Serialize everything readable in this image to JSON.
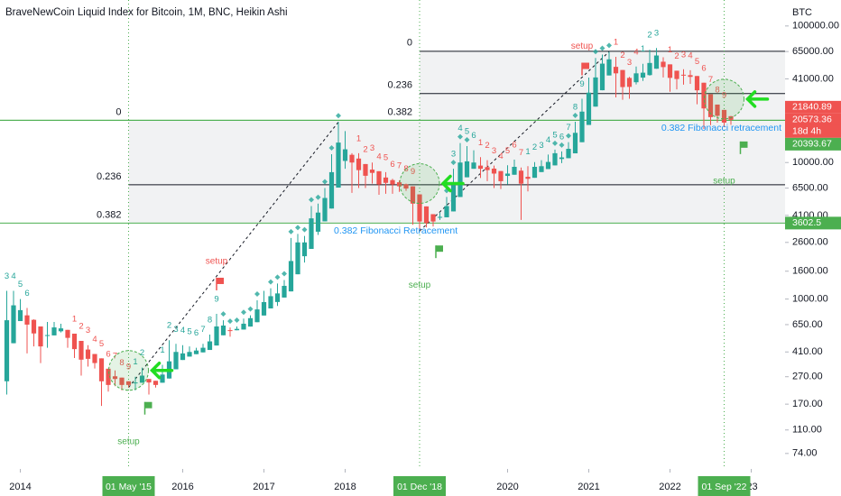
{
  "chart_data": {
    "type": "candlestick",
    "title": "BraveNewCoin Liquid Index for Bitcoin, 1M, BNC, Heikin Ashi",
    "currency": "BTC",
    "log_scale": true,
    "ylim": [
      57,
      155000
    ],
    "yticks": [
      {
        "value": 100000,
        "label": "100000.00"
      },
      {
        "value": 65000,
        "label": "65000.00"
      },
      {
        "value": 41000,
        "label": "41000.00"
      },
      {
        "value": 10000,
        "label": "10000.00"
      },
      {
        "value": 6500,
        "label": "6500.00"
      },
      {
        "value": 4100,
        "label": "4100.00"
      },
      {
        "value": 2600,
        "label": "2600.00"
      },
      {
        "value": 1600,
        "label": "1600.00"
      },
      {
        "value": 1000,
        "label": "1000.00"
      },
      {
        "value": 650,
        "label": "650.00"
      },
      {
        "value": 410,
        "label": "410.00"
      },
      {
        "value": 270,
        "label": "270.00"
      },
      {
        "value": 170,
        "label": "170.00"
      },
      {
        "value": 110,
        "label": "110.00"
      },
      {
        "value": 74,
        "label": "74.00"
      }
    ],
    "xlim": [
      "2013-10",
      "2023-06"
    ],
    "xticks": [
      {
        "value": "2014-01",
        "label": "2014"
      },
      {
        "value": "2016-01",
        "label": "2016"
      },
      {
        "value": "2017-01",
        "label": "2017"
      },
      {
        "value": "2018-01",
        "label": "2018"
      },
      {
        "value": "2020-01",
        "label": "2020"
      },
      {
        "value": "2021-01",
        "label": "2021"
      },
      {
        "value": "2022-01",
        "label": "2022"
      },
      {
        "value": "2023-01",
        "label": "'23"
      }
    ],
    "up_color": "#26a69a",
    "down_color": "#ef5350",
    "candles": {
      "x": [
        "2013-11",
        "2013-12",
        "2014-01",
        "2014-02",
        "2014-03",
        "2014-04",
        "2014-05",
        "2014-06",
        "2014-07",
        "2014-08",
        "2014-09",
        "2014-10",
        "2014-11",
        "2014-12",
        "2015-01",
        "2015-02",
        "2015-03",
        "2015-04",
        "2015-05",
        "2015-06",
        "2015-07",
        "2015-08",
        "2015-09",
        "2015-10",
        "2015-11",
        "2015-12",
        "2016-01",
        "2016-02",
        "2016-03",
        "2016-04",
        "2016-05",
        "2016-06",
        "2016-07",
        "2016-08",
        "2016-09",
        "2016-10",
        "2016-11",
        "2016-12",
        "2017-01",
        "2017-02",
        "2017-03",
        "2017-04",
        "2017-05",
        "2017-06",
        "2017-07",
        "2017-08",
        "2017-09",
        "2017-10",
        "2017-11",
        "2017-12",
        "2018-01",
        "2018-02",
        "2018-03",
        "2018-04",
        "2018-05",
        "2018-06",
        "2018-07",
        "2018-08",
        "2018-09",
        "2018-10",
        "2018-11",
        "2018-12",
        "2019-01",
        "2019-02",
        "2019-03",
        "2019-04",
        "2019-05",
        "2019-06",
        "2019-07",
        "2019-08",
        "2019-09",
        "2019-10",
        "2019-11",
        "2019-12",
        "2020-01",
        "2020-02",
        "2020-03",
        "2020-04",
        "2020-05",
        "2020-06",
        "2020-07",
        "2020-08",
        "2020-09",
        "2020-10",
        "2020-11",
        "2020-12",
        "2021-01",
        "2021-02",
        "2021-03",
        "2021-04",
        "2021-05",
        "2021-06",
        "2021-07",
        "2021-08",
        "2021-09",
        "2021-10",
        "2021-11",
        "2021-12",
        "2022-01",
        "2022-02",
        "2022-03",
        "2022-04",
        "2022-05",
        "2022-06",
        "2022-07",
        "2022-08",
        "2022-09",
        "2022-10"
      ],
      "open": [
        250,
        475,
        690,
        760,
        705,
        630,
        540,
        542,
        581,
        595,
        558,
        494,
        427,
        396,
        368,
        309,
        272,
        266,
        250,
        243,
        244,
        260,
        252,
        244,
        262,
        306,
        358,
        379,
        395,
        407,
        424,
        457,
        543,
        592,
        591,
        598,
        629,
        677,
        758,
        854,
        952,
        1026,
        1138,
        1519,
        2060,
        2330,
        3115,
        3708,
        4604,
        6552,
        10276,
        11388,
        10694,
        9747,
        8873,
        8637,
        7768,
        7434,
        7167,
        6933,
        6692,
        5846,
        4773,
        4186,
        3943,
        3971,
        4385,
        5592,
        7796,
        8998,
        9499,
        9250,
        9025,
        8663,
        7981,
        8140,
        8720,
        7860,
        7730,
        8515,
        8957,
        9528,
        10614,
        10757,
        11678,
        14089,
        18845,
        25672,
        33836,
        43418,
        50209,
        47605,
        41652,
        38726,
        41863,
        43681,
        48640,
        54720,
        52360,
        47030,
        43965,
        43632,
        43016,
        38408,
        31654,
        26577,
        24288,
        21840.89
      ],
      "high": [
        1150,
        1150,
        1000,
        860,
        710,
        630,
        680,
        680,
        660,
        595,
        558,
        494,
        460,
        396,
        368,
        309,
        300,
        266,
        250,
        270,
        315,
        260,
        252,
        330,
        500,
        470,
        460,
        450,
        440,
        470,
        550,
        780,
        700,
        620,
        630,
        720,
        760,
        980,
        1150,
        1200,
        1300,
        1380,
        2800,
        3000,
        2900,
        4800,
        5000,
        6500,
        11500,
        19800,
        17000,
        11700,
        11700,
        9750,
        9990,
        8637,
        8500,
        7600,
        7400,
        7000,
        6692,
        5846,
        4773,
        4186,
        4300,
        5600,
        9000,
        13900,
        13200,
        12300,
        10950,
        10400,
        9500,
        8663,
        9550,
        10500,
        9200,
        9400,
        10080,
        10400,
        11450,
        12450,
        12070,
        14100,
        19900,
        29300,
        41900,
        58300,
        61800,
        64800,
        59500,
        47605,
        42400,
        50500,
        52900,
        67000,
        69000,
        59000,
        52360,
        47030,
        48200,
        47400,
        43016,
        38408,
        31654,
        26577,
        24288,
        21930
      ],
      "low": [
        200,
        475,
        690,
        400,
        450,
        340,
        440,
        542,
        570,
        440,
        370,
        275,
        320,
        310,
        165,
        210,
        230,
        215,
        225,
        215,
        244,
        200,
        225,
        244,
        262,
        306,
        358,
        379,
        395,
        407,
        424,
        457,
        543,
        530,
        591,
        598,
        629,
        677,
        758,
        854,
        890,
        1026,
        1138,
        1519,
        1850,
        2330,
        2950,
        3708,
        4604,
        6552,
        9000,
        6000,
        6500,
        6500,
        7000,
        5800,
        5900,
        5900,
        6100,
        6200,
        3500,
        3150,
        3350,
        3400,
        3800,
        3971,
        4385,
        5592,
        7796,
        8998,
        7700,
        7300,
        6500,
        6400,
        6900,
        8140,
        3800,
        6150,
        7730,
        8515,
        8957,
        9528,
        9900,
        10757,
        11678,
        14089,
        18845,
        25672,
        33836,
        43418,
        30000,
        28800,
        29300,
        37300,
        39600,
        43300,
        48640,
        42000,
        33000,
        34300,
        37200,
        37700,
        26700,
        17600,
        18800,
        19600,
        18200,
        18900
      ],
      "close": [
        700,
        900,
        830,
        650,
        560,
        450,
        545,
        620,
        610,
        520,
        430,
        360,
        365,
        340,
        250,
        235,
        260,
        235,
        235,
        245,
        275,
        245,
        235,
        280,
        350,
        410,
        400,
        410,
        420,
        440,
        490,
        630,
        640,
        590,
        605,
        660,
        725,
        840,
        950,
        1050,
        1100,
        1250,
        1900,
        2600,
        2600,
        3900,
        4300,
        5500,
        8500,
        14000,
        12500,
        10000,
        8800,
        8000,
        8400,
        6900,
        7100,
        6900,
        6700,
        6450,
        5000,
        3700,
        3600,
        3700,
        4000,
        4800,
        6800,
        10000,
        10200,
        10000,
        9000,
        8800,
        8300,
        7300,
        8300,
        9300,
        7000,
        7600,
        9300,
        9400,
        10100,
        11700,
        10900,
        12600,
        16500,
        23600,
        32500,
        42000,
        53000,
        57000,
        45000,
        35700,
        35800,
        45000,
        45500,
        53600,
        60800,
        50000,
        41700,
        40900,
        43300,
        42400,
        33800,
        24900,
        21500,
        22000,
        19600,
        20573.36
      ]
    },
    "countdown": "18d 4h",
    "fibs": [
      {
        "from": "2018-12",
        "annotation": "0.382 Fibonacci retracement",
        "levels": [
          {
            "label": "0",
            "value": 65300,
            "color": "#131722"
          },
          {
            "label": "0.236",
            "value": 31980,
            "color": "#131722"
          },
          {
            "label": "0.382",
            "value": 20393.67,
            "color": "#4caf50",
            "extend_left": true
          }
        ]
      },
      {
        "from": "2015-05",
        "annotation": "0.382 Fibonacci Retracement",
        "levels": [
          {
            "label": "0",
            "value": 20393.67,
            "color": "#4caf50",
            "extend_left": true
          },
          {
            "label": "0.236",
            "value": 6870,
            "color": "#131722"
          },
          {
            "label": "0.382",
            "value": 3602.5,
            "color": "#4caf50",
            "extend_left": true
          }
        ]
      }
    ],
    "highlights": [
      {
        "x": "2015-05",
        "label": "01 May '15"
      },
      {
        "x": "2018-12",
        "label": "01 Dec '18"
      },
      {
        "x": "2022-09",
        "label": "01 Sep '22"
      }
    ],
    "trendlines": [
      {
        "from": "2015-05",
        "to": "2017-12"
      },
      {
        "from": "2018-12",
        "to": "2021-04"
      }
    ],
    "markers": [
      "2016-07",
      "2016-08",
      "2016-09",
      "2016-10",
      "2016-11",
      "2016-12",
      "2017-02",
      "2017-03",
      "2017-04",
      "2017-05",
      "2017-06",
      "2017-07",
      "2017-08",
      "2017-09",
      "2017-10",
      "2017-11",
      "2017-12",
      "2019-04",
      "2019-05",
      "2019-06",
      "2019-07",
      "2020-08",
      "2020-09",
      "2020-10",
      "2020-11",
      "2021-02",
      "2021-03",
      "2021-04"
    ],
    "td_counts": [
      {
        "start": "2013-11",
        "color": "#26a69a",
        "labels": [
          "3",
          "4",
          "5",
          "6"
        ]
      },
      {
        "start": "2014-09",
        "color": "#ef5350",
        "labels": [
          "1",
          "2",
          "3",
          "4",
          "5",
          "6",
          "7",
          "8",
          "9"
        ]
      },
      {
        "start": "2015-06",
        "color": "#26a69a",
        "labels": [
          "1",
          "2"
        ]
      },
      {
        "start": "2015-10",
        "color": "#26a69a",
        "labels": [
          "1",
          "2",
          "3",
          "4",
          "5",
          "6",
          "7",
          "8",
          "9"
        ]
      },
      {
        "start": "2018-03",
        "color": "#ef5350",
        "labels": [
          "1",
          "2",
          "3",
          "4",
          "5",
          "6",
          "7",
          "8",
          "9"
        ]
      },
      {
        "start": "2019-05",
        "color": "#26a69a",
        "labels": [
          "3",
          "4",
          "5",
          "6"
        ]
      },
      {
        "start": "2019-09",
        "color": "#ef5350",
        "labels": [
          "1",
          "2",
          "3",
          "4",
          "5",
          "6",
          "7"
        ]
      },
      {
        "start": "2020-04",
        "color": "#26a69a",
        "labels": [
          "1",
          "2",
          "3",
          "4",
          "5",
          "6",
          "7",
          "8",
          "9"
        ]
      },
      {
        "start": "2021-05",
        "color": "#ef5350",
        "labels": [
          "1",
          "2",
          "3",
          "4"
        ]
      },
      {
        "start": "2021-09",
        "color": "#26a69a",
        "labels": [
          "1",
          "2",
          "3"
        ]
      },
      {
        "start": "2022-01",
        "color": "#ef5350",
        "labels": [
          "1",
          "2",
          "3",
          "4",
          "5",
          "6",
          "7",
          "8",
          "9"
        ]
      }
    ],
    "setups": [
      {
        "x": "2015-05",
        "label": "setup",
        "color": "#4caf50"
      },
      {
        "x": "2016-06",
        "label": "setup",
        "color": "#ef5350"
      },
      {
        "x": "2018-12",
        "label": "setup",
        "color": "#4caf50"
      },
      {
        "x": "2020-12",
        "label": "setup",
        "color": "#ef5350"
      },
      {
        "x": "2022-09",
        "label": "setup",
        "color": "#4caf50"
      }
    ]
  }
}
